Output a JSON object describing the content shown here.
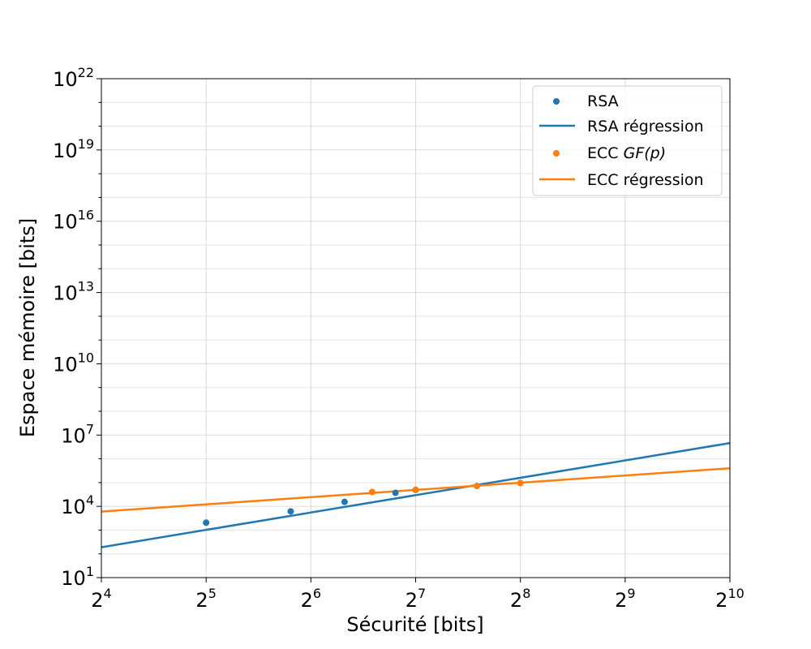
{
  "chart_data": {
    "type": "scatter",
    "title": "",
    "xlabel": "Sécurité [bits]",
    "ylabel": "Espace mémoire [bits]",
    "x_scale": "log2",
    "y_scale": "log10",
    "xlim": [
      16,
      1024
    ],
    "ylim": [
      10,
      1e+22
    ],
    "x_ticks": [
      {
        "base": "2",
        "exp": "4",
        "value": 16
      },
      {
        "base": "2",
        "exp": "5",
        "value": 32
      },
      {
        "base": "2",
        "exp": "6",
        "value": 64
      },
      {
        "base": "2",
        "exp": "7",
        "value": 128
      },
      {
        "base": "2",
        "exp": "8",
        "value": 256
      },
      {
        "base": "2",
        "exp": "9",
        "value": 512
      },
      {
        "base": "2",
        "exp": "10",
        "value": 1024
      }
    ],
    "y_ticks": [
      {
        "base": "10",
        "exp": "1",
        "value": 10
      },
      {
        "base": "10",
        "exp": "4",
        "value": 10000.0
      },
      {
        "base": "10",
        "exp": "7",
        "value": 10000000.0
      },
      {
        "base": "10",
        "exp": "10",
        "value": 10000000000.0
      },
      {
        "base": "10",
        "exp": "13",
        "value": 10000000000000.0
      },
      {
        "base": "10",
        "exp": "16",
        "value": 1e+16
      },
      {
        "base": "10",
        "exp": "19",
        "value": 1e+19
      },
      {
        "base": "10",
        "exp": "22",
        "value": 1e+22
      }
    ],
    "grid": true,
    "legend_position": "top-right",
    "series": [
      {
        "name": "RSA",
        "kind": "scatter",
        "color": "#1f77b4",
        "points": [
          {
            "x": 32,
            "y": 2048
          },
          {
            "x": 56,
            "y": 6144
          },
          {
            "x": 80,
            "y": 15360
          },
          {
            "x": 112,
            "y": 36864
          },
          {
            "x": 128,
            "y": 49152
          }
        ]
      },
      {
        "name": "RSA régression",
        "kind": "line",
        "color": "#1f77b4",
        "points": [
          {
            "x": 16,
            "y": 190
          },
          {
            "x": 1024,
            "y": 4600000
          }
        ]
      },
      {
        "name": "ECC",
        "name_italic": "GF(p)",
        "kind": "scatter",
        "color": "#ff7f0e",
        "points": [
          {
            "x": 96,
            "y": 40000
          },
          {
            "x": 128,
            "y": 50000
          },
          {
            "x": 192,
            "y": 72000
          },
          {
            "x": 256,
            "y": 96000
          }
        ]
      },
      {
        "name": "ECC régression",
        "kind": "line",
        "color": "#ff7f0e",
        "points": [
          {
            "x": 16,
            "y": 6000
          },
          {
            "x": 1024,
            "y": 400000
          }
        ]
      }
    ]
  }
}
